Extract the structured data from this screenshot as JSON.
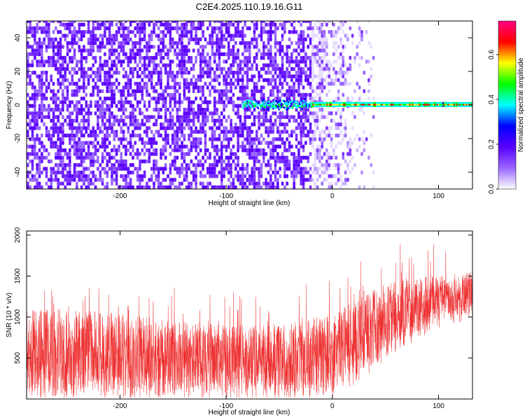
{
  "title": "C2E4.2025.110.19.16.G11",
  "chart_data": [
    {
      "type": "heatmap",
      "xlabel": "Height of straight line (km)",
      "ylabel": "Frequency (Hz)",
      "xlim": [
        -288,
        132
      ],
      "ylim": [
        -50,
        50
      ],
      "xticks": [
        -200,
        -100,
        0,
        100
      ],
      "xtick_labels": [
        "-200",
        "-100",
        "0",
        "100"
      ],
      "yticks": [
        -40,
        -20,
        0,
        20,
        40
      ],
      "ytick_labels": [
        "-40",
        "-20",
        "0",
        "20",
        "40"
      ],
      "colorbar": {
        "label": "Normalized spectral amplitude",
        "range": [
          0,
          0.75
        ],
        "ticks": [
          0.0,
          0.2,
          0.4,
          0.6
        ],
        "tick_labels": [
          "0.0",
          "0.2",
          "0.4",
          "0.6"
        ],
        "colormap": [
          "#ffffff",
          "#9966ff",
          "#5a00ff",
          "#0000ff",
          "#00ffff",
          "#00ff00",
          "#ffff00",
          "#ff0000",
          "#ff0080"
        ]
      },
      "features": {
        "noise_band_x_range": [
          -288,
          -20
        ],
        "noise_fade_x_range": [
          -20,
          40
        ],
        "line_frequency_hz": 0,
        "line_x_range": [
          -85,
          132
        ],
        "line_peak_amplitude": 0.72
      },
      "grid": false
    },
    {
      "type": "line",
      "xlabel": "Height of straight line (km)",
      "ylabel": "SNR (10 * v/v)",
      "xlim": [
        -288,
        132
      ],
      "ylim": [
        0,
        2050
      ],
      "xticks": [
        -200,
        -100,
        0,
        100
      ],
      "xtick_labels": [
        "-200",
        "-100",
        "0",
        "100"
      ],
      "yticks": [
        500,
        1000,
        1500,
        2000
      ],
      "ytick_labels": [
        "500",
        "1000",
        "1500",
        "2000"
      ],
      "color": "#ee3333",
      "envelope": {
        "x": [
          -288,
          -250,
          -200,
          -150,
          -100,
          -60,
          -30,
          0,
          20,
          40,
          60,
          80,
          100,
          132
        ],
        "upper": [
          1100,
          1100,
          1050,
          950,
          900,
          900,
          950,
          1050,
          1200,
          1350,
          1450,
          1500,
          1500,
          1550
        ],
        "lower": [
          80,
          80,
          80,
          80,
          80,
          80,
          80,
          100,
          250,
          450,
          650,
          800,
          950,
          1050
        ]
      },
      "grid": false
    }
  ]
}
